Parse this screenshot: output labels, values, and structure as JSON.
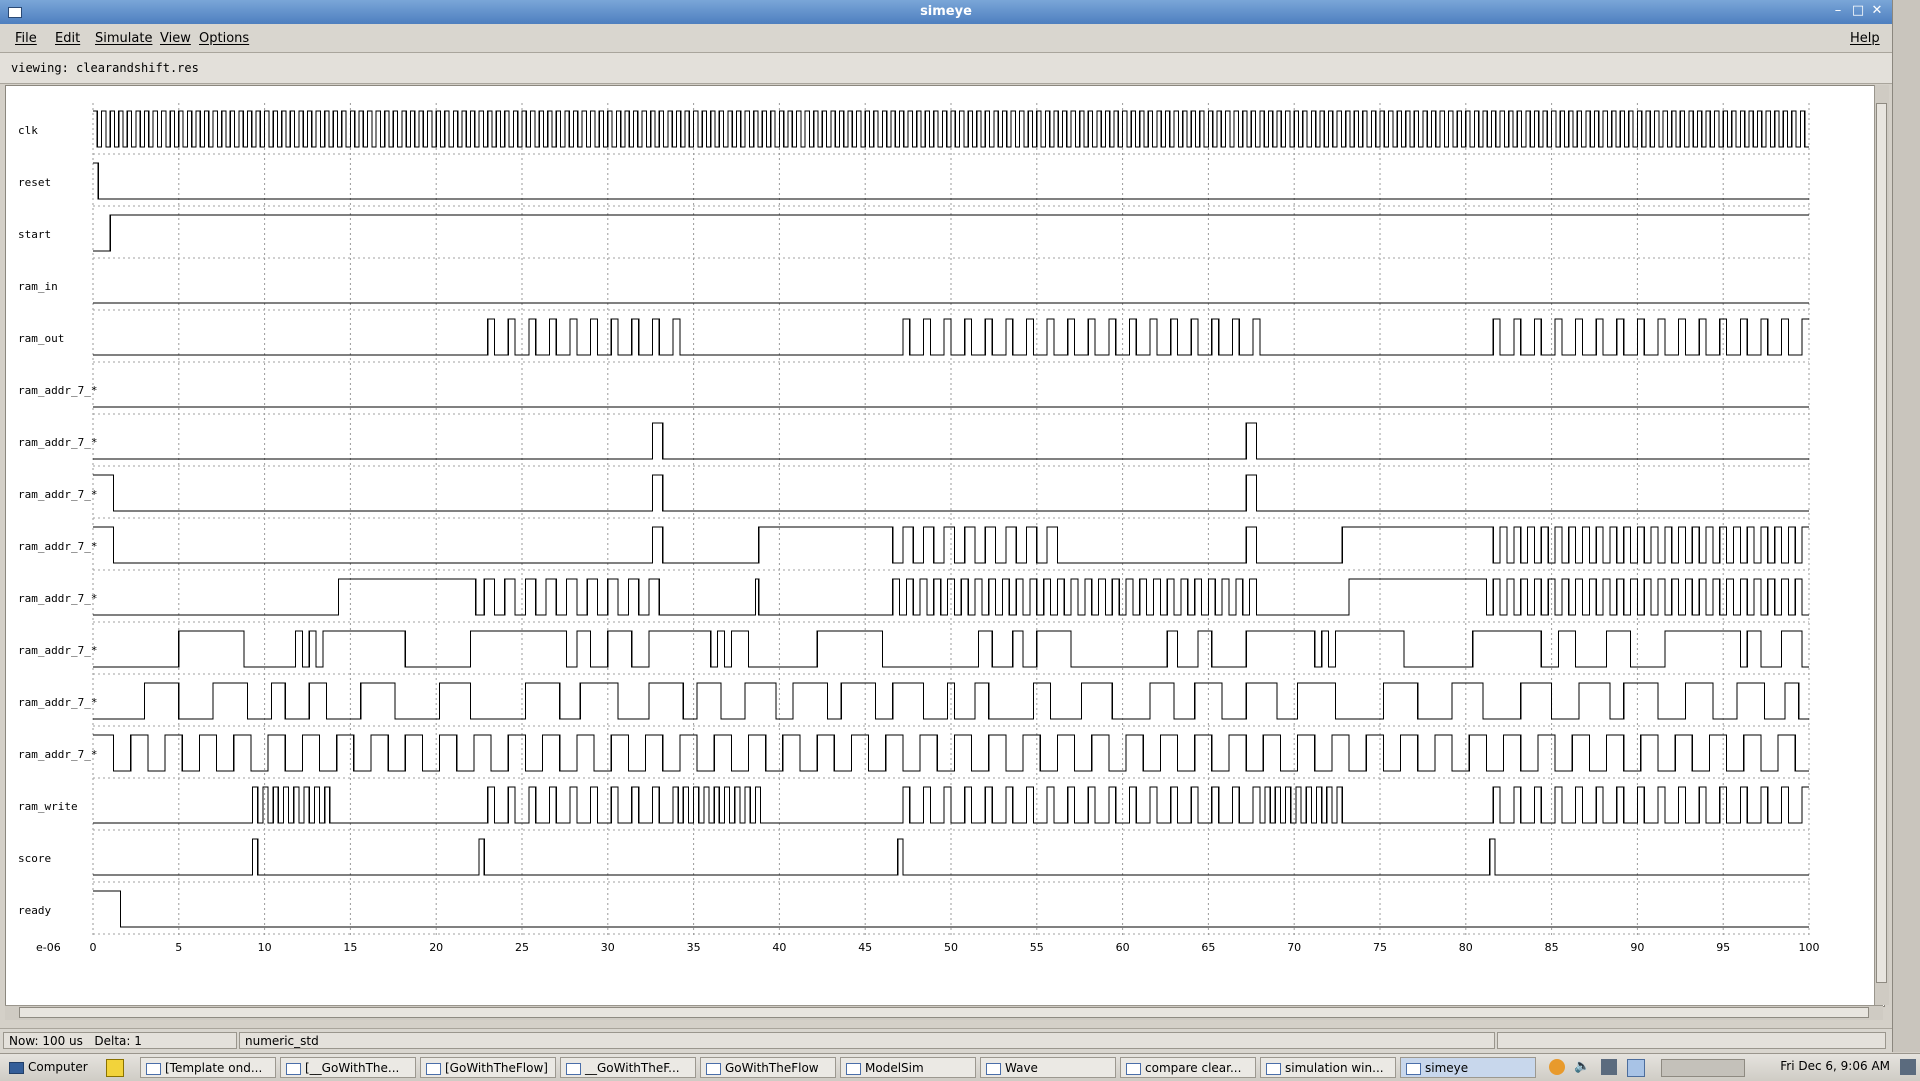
{
  "window": {
    "title": "simeye",
    "controls": [
      "minimize-icon",
      "maximize-icon",
      "close-icon"
    ]
  },
  "menu": {
    "left": [
      "File",
      "Edit",
      "Simulate",
      "View",
      "Options"
    ],
    "right": "Help"
  },
  "viewing": "viewing: clearandshift.res",
  "waveform": {
    "scale_label": "e-06",
    "x_ticks": [
      "0",
      "5",
      "10",
      "15",
      "20",
      "25",
      "30",
      "35",
      "40",
      "45",
      "50",
      "55",
      "60",
      "65",
      "70",
      "75",
      "80",
      "85",
      "90",
      "95",
      "100"
    ],
    "signals": [
      {
        "name": "clk",
        "kind": "clock",
        "period": 0.5
      },
      {
        "name": "reset",
        "init": 1,
        "edges": [
          0.3
        ]
      },
      {
        "name": "start",
        "init": 0,
        "edges": [
          1.0
        ]
      },
      {
        "name": "ram_in",
        "init": 0,
        "edges": []
      },
      {
        "name": "ram_out",
        "init": 0,
        "edges": [
          23,
          23.4,
          24.2,
          24.6,
          25.4,
          25.8,
          26.6,
          27,
          27.8,
          28.2,
          29,
          29.4,
          30.2,
          30.6,
          31.4,
          31.8,
          32.6,
          33,
          33.8,
          34.2,
          47.2,
          47.6,
          48.4,
          48.8,
          49.6,
          50,
          50.8,
          51.2,
          52,
          52.4,
          53.2,
          53.6,
          54.4,
          54.8,
          55.6,
          56,
          56.8,
          57.2,
          58,
          58.4,
          59.2,
          59.6,
          60.4,
          60.8,
          61.6,
          62,
          62.8,
          63.2,
          64,
          64.4,
          65.2,
          65.6,
          66.4,
          66.8,
          67.6,
          68,
          81.6,
          82,
          82.8,
          83.2,
          84,
          84.4,
          85.2,
          85.6,
          86.4,
          86.8,
          87.6,
          88,
          88.8,
          89.2,
          90,
          90.4,
          91.2,
          91.6,
          92.4,
          92.8,
          93.6,
          94,
          94.8,
          95.2,
          96,
          96.4,
          97.2,
          97.6,
          98.4,
          98.8,
          99.6
        ]
      },
      {
        "name": "ram_addr_7_*",
        "init": 0,
        "edges": []
      },
      {
        "name": "ram_addr_7_*",
        "init": 0,
        "edges": [
          32.6,
          33.2,
          67.2,
          67.8
        ]
      },
      {
        "name": "ram_addr_7_*",
        "init": 1,
        "edges": [
          1.2,
          32.6,
          33.2,
          67.2,
          67.8
        ]
      },
      {
        "name": "ram_addr_7_*",
        "init": 1,
        "edges": [
          1.2,
          32.6,
          33.2,
          38.8,
          46.6,
          47.2,
          47.8,
          48.4,
          49,
          49.6,
          50.2,
          50.8,
          51.4,
          52,
          52.6,
          53.2,
          53.8,
          54.4,
          55,
          55.6,
          56.2,
          67.2,
          67.8,
          72.8,
          81.6,
          82,
          82.4,
          82.8,
          83.2,
          83.6,
          84,
          84.4,
          84.8,
          85.2,
          85.6,
          86,
          86.4,
          86.8,
          87.2,
          87.6,
          88,
          88.4,
          88.8,
          89.2,
          89.6,
          90,
          90.4,
          90.8,
          91.2,
          91.6,
          92,
          92.4,
          92.8,
          93.2,
          93.6,
          94,
          94.4,
          94.8,
          95.2,
          95.6,
          96,
          96.4,
          96.8,
          97.2,
          97.6,
          98,
          98.4,
          98.8,
          99.2,
          99.6
        ]
      },
      {
        "name": "ram_addr_7_*",
        "init": 0,
        "edges": [
          14.3,
          22.3,
          22.8,
          23.4,
          24,
          24.6,
          25.2,
          25.8,
          26.4,
          27,
          27.6,
          28.2,
          28.8,
          29.4,
          30,
          30.6,
          31.2,
          31.8,
          32.4,
          33,
          38.6,
          38.8,
          46.6,
          47,
          47.4,
          47.8,
          48.2,
          48.6,
          49,
          49.4,
          49.8,
          50.2,
          50.6,
          51,
          51.4,
          51.8,
          52.2,
          52.6,
          53,
          53.4,
          53.8,
          54.2,
          54.6,
          55,
          55.4,
          55.8,
          56.2,
          56.6,
          57,
          57.4,
          57.8,
          58.2,
          58.6,
          59,
          59.4,
          59.8,
          60.2,
          60.6,
          61,
          61.4,
          61.8,
          62.2,
          62.6,
          63,
          63.4,
          63.8,
          64.2,
          64.6,
          65,
          65.4,
          65.8,
          66.2,
          66.6,
          67,
          67.4,
          67.8,
          73.2,
          81.2,
          81.6,
          82,
          82.4,
          82.8,
          83.2,
          83.6,
          84,
          84.4,
          84.8,
          85.2,
          85.6,
          86,
          86.4,
          86.8,
          87.2,
          87.6,
          88,
          88.4,
          88.8,
          89.2,
          89.6,
          90,
          90.4,
          90.8,
          91.2,
          91.6,
          92,
          92.4,
          92.8,
          93.2,
          93.6,
          94,
          94.4,
          94.8,
          95.2,
          95.6,
          96,
          96.4,
          96.8,
          97.2,
          97.6,
          98,
          98.4,
          98.8,
          99.2,
          99.6
        ]
      },
      {
        "name": "ram_addr_7_*",
        "init": 0,
        "edges": [
          5,
          8.8,
          11.8,
          12.2,
          12.6,
          13,
          13.4,
          18.2,
          22,
          27.6,
          28.2,
          29,
          30,
          31.4,
          32.4,
          36,
          36.4,
          36.8,
          37.2,
          38.2,
          42.2,
          46,
          51.6,
          52.4,
          53.6,
          54.2,
          55,
          57,
          62.6,
          63.2,
          64.4,
          65.2,
          67.2,
          71.2,
          71.6,
          72,
          72.4,
          76.4,
          80.4,
          84.4,
          85.4,
          86.4,
          88.2,
          89.6,
          91.6,
          96,
          96.4,
          97.2,
          98.4,
          99.6
        ]
      },
      {
        "name": "ram_addr_7_*",
        "init": 0,
        "edges": [
          3,
          5,
          7,
          9,
          10.4,
          11.2,
          12.6,
          13.6,
          15.6,
          17.6,
          20.2,
          22,
          25.2,
          27.2,
          28.4,
          30.6,
          32.4,
          34.4,
          35.2,
          36.6,
          38,
          39.8,
          40.8,
          42.8,
          43.6,
          45.6,
          46.6,
          48.4,
          49.8,
          50.2,
          51.4,
          52.2,
          54.8,
          55.8,
          57.6,
          59.4,
          61.6,
          63,
          64.2,
          65.8,
          67.2,
          69,
          70.2,
          72.4,
          75.2,
          77.2,
          79.2,
          81,
          83.2,
          85,
          86.6,
          88.4,
          89.2,
          91.2,
          92.8,
          94.4,
          95.8,
          97.4,
          98.6,
          99.4
        ]
      },
      {
        "name": "ram_addr_7_*",
        "init": 1,
        "edges": [
          1.2,
          2.2,
          3.2,
          4.2,
          5.2,
          6.2,
          7.2,
          8.2,
          9.2,
          10.2,
          11.2,
          12.2,
          13.2,
          14.2,
          15.2,
          16.2,
          17.2,
          18.2,
          19.2,
          20.2,
          21.2,
          22.2,
          23.2,
          24.2,
          25.2,
          26.2,
          27.2,
          28.2,
          29.2,
          30.2,
          31.2,
          32.2,
          33.2,
          34.2,
          35.2,
          36.2,
          37.2,
          38.2,
          39.2,
          40.2,
          41.2,
          42.2,
          43.2,
          44.2,
          45.2,
          46.2,
          47.2,
          48.2,
          49.2,
          50.2,
          51.2,
          52.2,
          53.2,
          54.2,
          55.2,
          56.2,
          57.2,
          58.2,
          59.2,
          60.2,
          61.2,
          62.2,
          63.2,
          64.2,
          65.2,
          66.2,
          67.2,
          68.2,
          69.2,
          70.2,
          71.2,
          72.2,
          73.2,
          74.2,
          75.2,
          76.2,
          77.2,
          78.2,
          79.2,
          80.2,
          81.2,
          82.2,
          83.2,
          84.2,
          85.2,
          86.2,
          87.2,
          88.2,
          89.2,
          90.2,
          91.2,
          92.2,
          93.2,
          94.2,
          95.2,
          96.2,
          97.2,
          98.2,
          99.2
        ]
      },
      {
        "name": "ram_write",
        "init": 0,
        "edges": [
          9.3,
          9.6,
          9.9,
          10.2,
          10.5,
          10.8,
          11.1,
          11.4,
          11.7,
          12,
          12.3,
          12.6,
          12.9,
          13.2,
          13.5,
          13.8,
          23,
          23.4,
          24.2,
          24.6,
          25.4,
          25.8,
          26.6,
          27,
          27.8,
          28.2,
          29,
          29.4,
          30.2,
          30.6,
          31.4,
          31.8,
          32.6,
          33,
          33.8,
          34.1,
          34.4,
          34.7,
          35,
          35.3,
          35.6,
          35.9,
          36.2,
          36.5,
          36.8,
          37.1,
          37.4,
          37.7,
          38,
          38.3,
          38.6,
          38.9,
          47.2,
          47.6,
          48.4,
          48.8,
          49.6,
          50,
          50.8,
          51.2,
          52,
          52.4,
          53.2,
          53.6,
          54.4,
          54.8,
          55.6,
          56,
          56.8,
          57.2,
          58,
          58.4,
          59.2,
          59.6,
          60.4,
          60.8,
          61.6,
          62,
          62.8,
          63.2,
          64,
          64.4,
          65.2,
          65.6,
          66.4,
          66.8,
          67.6,
          68,
          68.3,
          68.6,
          68.9,
          69.2,
          69.5,
          69.8,
          70.1,
          70.4,
          70.7,
          71,
          71.3,
          71.6,
          71.9,
          72.2,
          72.5,
          72.8,
          81.6,
          82,
          82.8,
          83.2,
          84,
          84.4,
          85.2,
          85.6,
          86.4,
          86.8,
          87.6,
          88,
          88.8,
          89.2,
          90,
          90.4,
          91.2,
          91.6,
          92.4,
          92.8,
          93.6,
          94,
          94.8,
          95.2,
          96,
          96.4,
          97.2,
          97.6,
          98.4,
          98.8,
          99.6
        ]
      },
      {
        "name": "score",
        "init": 0,
        "edges": [
          9.3,
          9.6,
          22.5,
          22.8,
          46.9,
          47.2,
          81.4,
          81.7
        ]
      },
      {
        "name": "ready",
        "init": 1,
        "edges": [
          1.6
        ]
      }
    ]
  },
  "status": {
    "now": "Now: 100 us",
    "delta": "Delta: 1",
    "library": "numeric_std"
  },
  "taskbar": {
    "computer": "Computer",
    "buttons": [
      "[Template ond...",
      "[__GoWithThe...",
      "[GoWithTheFlow]",
      "__GoWithTheF...",
      "GoWithTheFlow",
      "ModelSim",
      "Wave",
      "compare clear...",
      "simulation win...",
      "simeye"
    ],
    "clock": "Fri Dec 6,  9:06 AM"
  }
}
